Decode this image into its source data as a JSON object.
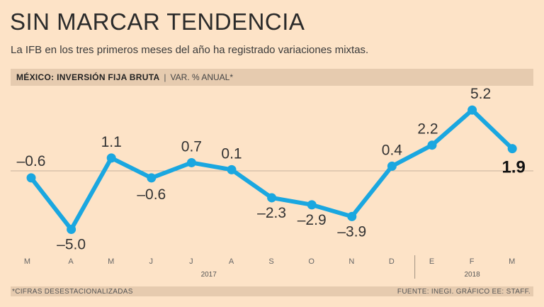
{
  "header": {
    "title": "SIN MARCAR TENDENCIA",
    "subtitle": "La IFB en los tres primeros meses del año ha registrado variaciones mixtas.",
    "label_main": "MÉXICO: INVERSIÓN FIJA BRUTA",
    "label_separator": "|",
    "label_unit": "VAR. % ANUAL*"
  },
  "footer": {
    "note": "*CIFRAS DESESTACIONALIZADAS",
    "source": "FUENTE: INEGI. GRÁFICO EE: STAFF."
  },
  "chart_data": {
    "type": "line",
    "title": "MÉXICO: INVERSIÓN FIJA BRUTA",
    "ylabel": "VAR. % ANUAL*",
    "categories": [
      "M",
      "A",
      "M",
      "J",
      "J",
      "A",
      "S",
      "O",
      "N",
      "D",
      "E",
      "F",
      "M"
    ],
    "years": [
      {
        "label": "2017",
        "from": 0,
        "to": 9
      },
      {
        "label": "2018",
        "from": 10,
        "to": 12
      }
    ],
    "series": [
      {
        "name": "Inversión fija bruta",
        "values": [
          -0.6,
          -5.0,
          1.1,
          -0.6,
          0.7,
          0.1,
          -2.3,
          -2.9,
          -3.9,
          0.4,
          2.2,
          5.2,
          1.9
        ],
        "labels": [
          "–0.6",
          "–5.0",
          "1.1",
          "–0.6",
          "0.7",
          "0.1",
          "–2.3",
          "–2.9",
          "–3.9",
          "0.4",
          "2.2",
          "5.2",
          "1.9"
        ],
        "color": "#1aa7e0"
      }
    ],
    "highlight_index": 12,
    "ylim": [
      -6,
      6.5
    ],
    "zero_line": true,
    "grid": false
  }
}
